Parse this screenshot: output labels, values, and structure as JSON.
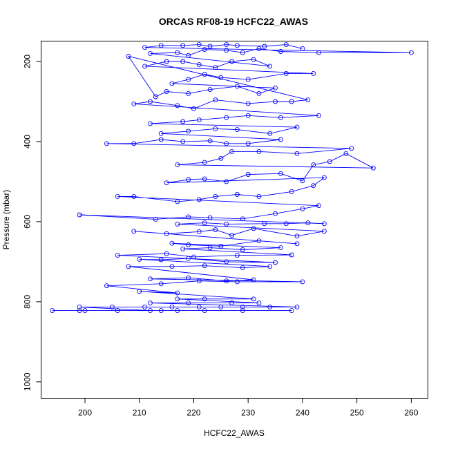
{
  "chart_data": {
    "type": "line",
    "title": "ORCAS RF08-19 HCFC22_AWAS",
    "xlabel": "HCFC22_AWAS",
    "ylabel": "Pressure (mbar)",
    "xlim": [
      192,
      263
    ],
    "ylim": [
      1040,
      150
    ],
    "y_reversed": true,
    "x_ticks": [
      200,
      210,
      220,
      230,
      240,
      250,
      260
    ],
    "y_ticks": [
      200,
      400,
      600,
      800,
      1000
    ],
    "grid": false,
    "legend": "none",
    "series": [
      {
        "color": "#0000ff",
        "marker": "open-circle",
        "points": [
          [
            194,
            822
          ],
          [
            200,
            822
          ],
          [
            206,
            822
          ],
          [
            214,
            822
          ],
          [
            217,
            822
          ],
          [
            222,
            822
          ],
          [
            229,
            822
          ],
          [
            238,
            822
          ],
          [
            199,
            822
          ],
          [
            212,
            822
          ],
          [
            199,
            813
          ],
          [
            205,
            813
          ],
          [
            211,
            813
          ],
          [
            216,
            813
          ],
          [
            221,
            813
          ],
          [
            225,
            813
          ],
          [
            229,
            813
          ],
          [
            234,
            813
          ],
          [
            239,
            813
          ],
          [
            212,
            803
          ],
          [
            219,
            803
          ],
          [
            227,
            803
          ],
          [
            232,
            803
          ],
          [
            217,
            793
          ],
          [
            222,
            793
          ],
          [
            231,
            793
          ],
          [
            210,
            774
          ],
          [
            217,
            778
          ],
          [
            204,
            760
          ],
          [
            214,
            755
          ],
          [
            221,
            748
          ],
          [
            228,
            750
          ],
          [
            240,
            750
          ],
          [
            212,
            743
          ],
          [
            219,
            740
          ],
          [
            226,
            748
          ],
          [
            231,
            745
          ],
          [
            208,
            712
          ],
          [
            216,
            712
          ],
          [
            222,
            710
          ],
          [
            229,
            715
          ],
          [
            234,
            712
          ],
          [
            210,
            694
          ],
          [
            214,
            695
          ],
          [
            219,
            692
          ],
          [
            226,
            700
          ],
          [
            235,
            702
          ],
          [
            206,
            684
          ],
          [
            215,
            680
          ],
          [
            220,
            688
          ],
          [
            228,
            684
          ],
          [
            238,
            683
          ],
          [
            218,
            668
          ],
          [
            223,
            665
          ],
          [
            229,
            670
          ],
          [
            236,
            665
          ],
          [
            216,
            654
          ],
          [
            219,
            658
          ],
          [
            225,
            661
          ],
          [
            232,
            648
          ],
          [
            239,
            655
          ],
          [
            209,
            624
          ],
          [
            215,
            630
          ],
          [
            221,
            625
          ],
          [
            224,
            620
          ],
          [
            227,
            634
          ],
          [
            231,
            617
          ],
          [
            239,
            636
          ],
          [
            244,
            624
          ],
          [
            217,
            606
          ],
          [
            222,
            603
          ],
          [
            226,
            606
          ],
          [
            233,
            605
          ],
          [
            237,
            605
          ],
          [
            241,
            603
          ],
          [
            244,
            605
          ],
          [
            199,
            583
          ],
          [
            213,
            594
          ],
          [
            219,
            588
          ],
          [
            223,
            590
          ],
          [
            229,
            593
          ],
          [
            235,
            580
          ],
          [
            240,
            568
          ],
          [
            243,
            560
          ],
          [
            206,
            537
          ],
          [
            209,
            537
          ],
          [
            217,
            550
          ],
          [
            221,
            545
          ],
          [
            224,
            537
          ],
          [
            228,
            532
          ],
          [
            232,
            537
          ],
          [
            238,
            525
          ],
          [
            242,
            510
          ],
          [
            244,
            490
          ],
          [
            215,
            503
          ],
          [
            219,
            495
          ],
          [
            222,
            493
          ],
          [
            226,
            500
          ],
          [
            230,
            482
          ],
          [
            236,
            480
          ],
          [
            240,
            498
          ],
          [
            242,
            458
          ],
          [
            245,
            450
          ],
          [
            248,
            430
          ],
          [
            253,
            466
          ],
          [
            217,
            458
          ],
          [
            222,
            452
          ],
          [
            225,
            442
          ],
          [
            227,
            425
          ],
          [
            232,
            425
          ],
          [
            239,
            430
          ],
          [
            249,
            417
          ],
          [
            204,
            405
          ],
          [
            209,
            405
          ],
          [
            214,
            395
          ],
          [
            218,
            400
          ],
          [
            223,
            398
          ],
          [
            226,
            405
          ],
          [
            230,
            405
          ],
          [
            236,
            395
          ],
          [
            214,
            380
          ],
          [
            219,
            374
          ],
          [
            224,
            368
          ],
          [
            228,
            370
          ],
          [
            234,
            380
          ],
          [
            239,
            364
          ],
          [
            212,
            355
          ],
          [
            218,
            350
          ],
          [
            221,
            346
          ],
          [
            226,
            340
          ],
          [
            230,
            335
          ],
          [
            236,
            340
          ],
          [
            243,
            335
          ],
          [
            209,
            306
          ],
          [
            212,
            300
          ],
          [
            217,
            310
          ],
          [
            220,
            318
          ],
          [
            224,
            296
          ],
          [
            230,
            305
          ],
          [
            235,
            300
          ],
          [
            238,
            300
          ],
          [
            241,
            296
          ],
          [
            208,
            187
          ],
          [
            213,
            288
          ],
          [
            215,
            275
          ],
          [
            219,
            280
          ],
          [
            223,
            270
          ],
          [
            228,
            262
          ],
          [
            232,
            280
          ],
          [
            235,
            266
          ],
          [
            216,
            255
          ],
          [
            219,
            245
          ],
          [
            222,
            232
          ],
          [
            225,
            240
          ],
          [
            230,
            245
          ],
          [
            237,
            230
          ],
          [
            242,
            230
          ],
          [
            211,
            212
          ],
          [
            215,
            200
          ],
          [
            218,
            200
          ],
          [
            221,
            208
          ],
          [
            224,
            215
          ],
          [
            227,
            200
          ],
          [
            231,
            195
          ],
          [
            234,
            212
          ],
          [
            212,
            180
          ],
          [
            217,
            178
          ],
          [
            219,
            185
          ],
          [
            222,
            170
          ],
          [
            226,
            172
          ],
          [
            229,
            178
          ],
          [
            232,
            168
          ],
          [
            236,
            175
          ],
          [
            243,
            178
          ],
          [
            260,
            178
          ],
          [
            211,
            165
          ],
          [
            214,
            160
          ],
          [
            218,
            160
          ],
          [
            221,
            158
          ],
          [
            223,
            162
          ],
          [
            226,
            158
          ],
          [
            228,
            160
          ],
          [
            233,
            162
          ],
          [
            237,
            158
          ],
          [
            240,
            168
          ]
        ]
      }
    ]
  }
}
